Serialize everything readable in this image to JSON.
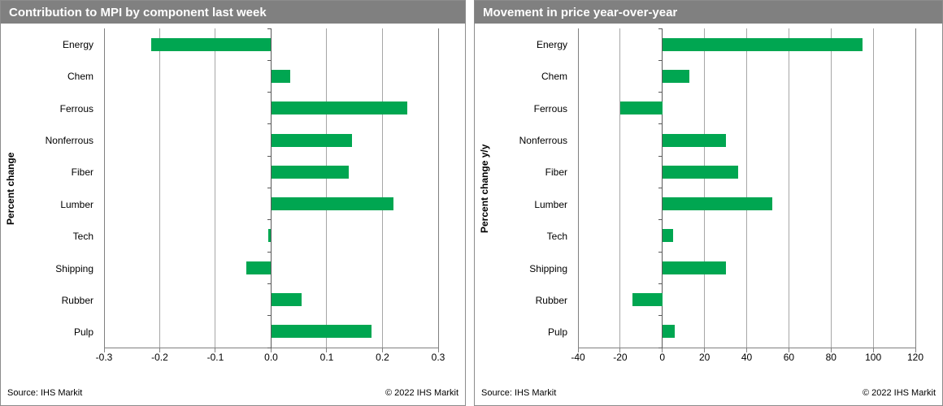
{
  "colors": {
    "bar_green": "#00A651",
    "header_gray": "#808080",
    "grid_line": "#A6A6A6",
    "plot_border": "#808080",
    "zero_axis": "#595959"
  },
  "footer": {
    "source": "Source:  IHS Markit",
    "copyright": "© 2022  IHS Markit"
  },
  "chart_data": [
    {
      "type": "bar",
      "orientation": "horizontal",
      "title": "Contribution to MPI by component last week",
      "ylabel": "Percent change",
      "categories": [
        "Energy",
        "Chem",
        "Ferrous",
        "Nonferrous",
        "Fiber",
        "Lumber",
        "Tech",
        "Shipping",
        "Rubber",
        "Pulp"
      ],
      "values": [
        -0.215,
        0.035,
        0.245,
        0.145,
        0.14,
        0.22,
        -0.005,
        -0.045,
        0.055,
        0.18
      ],
      "xlim": [
        -0.3,
        0.3
      ],
      "xticks": [
        -0.3,
        -0.2,
        -0.1,
        0,
        0.1,
        0.2,
        0.3
      ],
      "xtick_labels": [
        "-0.3",
        "-0.2",
        "-0.1",
        "0.0",
        "0.1",
        "0.2",
        "0.3"
      ],
      "grid": true,
      "legend": "none"
    },
    {
      "type": "bar",
      "orientation": "horizontal",
      "title": "Movement in price year-over-year",
      "ylabel": "Percent change y/y",
      "categories": [
        "Energy",
        "Chem",
        "Ferrous",
        "Nonferrous",
        "Fiber",
        "Lumber",
        "Tech",
        "Shipping",
        "Rubber",
        "Pulp"
      ],
      "values": [
        95,
        13,
        -20,
        30,
        36,
        52,
        5,
        30,
        -14,
        6
      ],
      "xlim": [
        -40,
        120
      ],
      "xticks": [
        -40,
        -20,
        0,
        20,
        40,
        60,
        80,
        100,
        120
      ],
      "xtick_labels": [
        "-40",
        "-20",
        "0",
        "20",
        "40",
        "60",
        "80",
        "100",
        "120"
      ],
      "grid": true,
      "legend": "none"
    }
  ]
}
